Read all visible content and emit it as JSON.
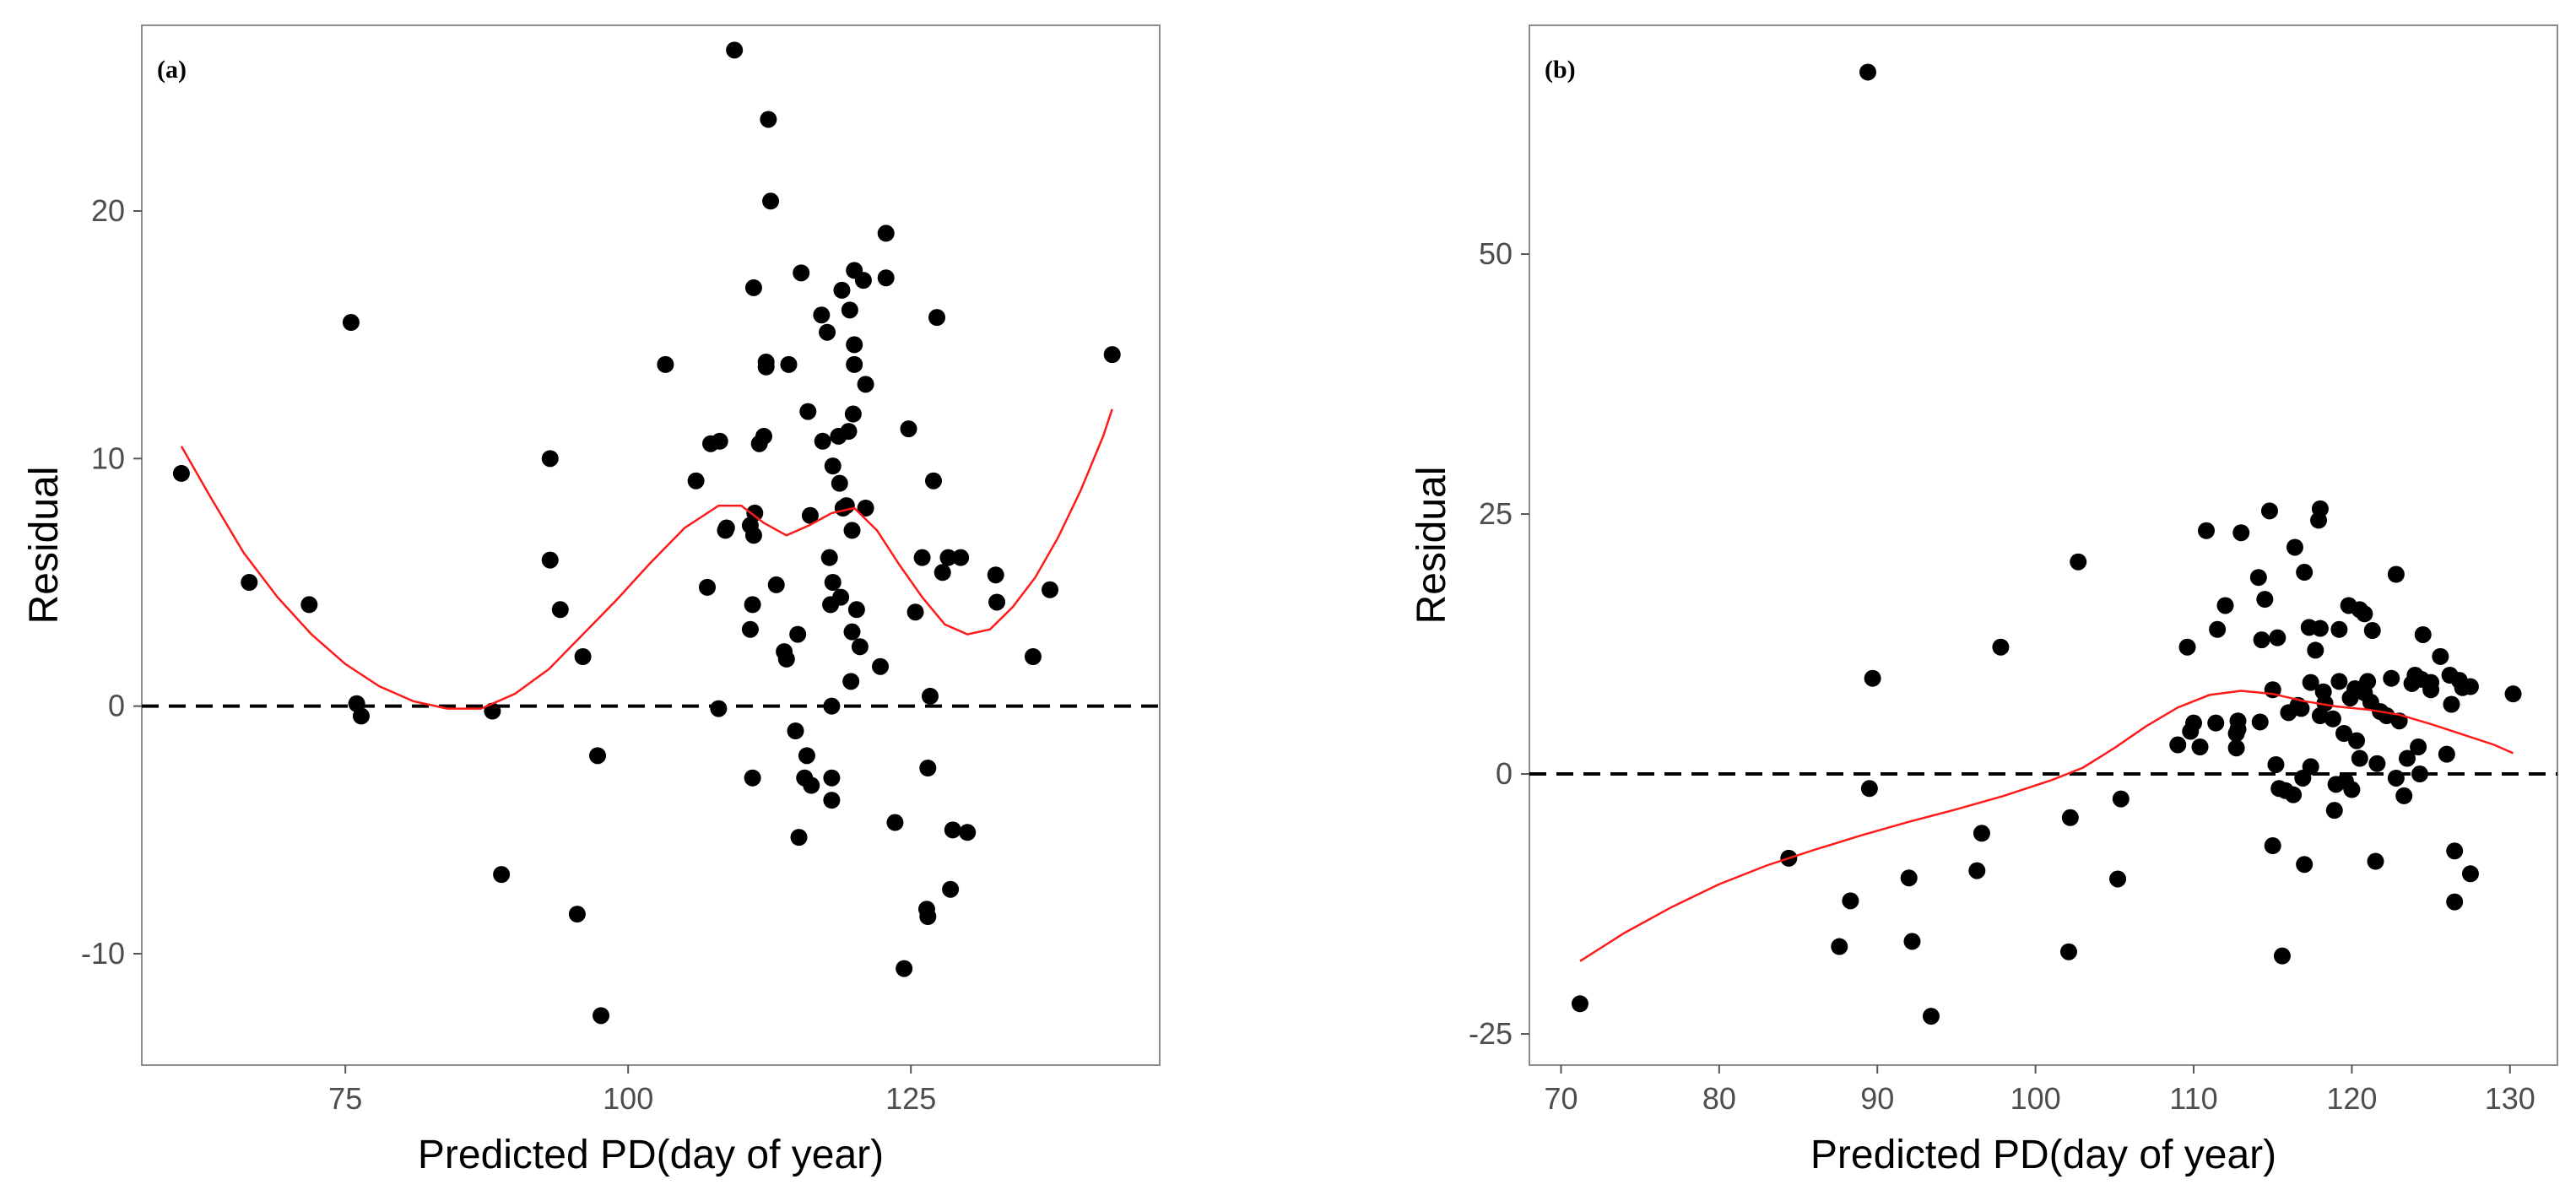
{
  "chart_data": [
    {
      "type": "scatter",
      "panel_label": "(a)",
      "title": "",
      "xlabel": "Predicted PD(day of year)",
      "ylabel": "Residual",
      "xlim": [
        57,
        147
      ],
      "ylim": [
        -14.5,
        27.5
      ],
      "xticks": [
        75,
        100,
        125
      ],
      "yticks": [
        -10,
        0,
        10,
        20
      ],
      "grid": false,
      "legend": "none",
      "reference_line": 0,
      "points": [
        [
          60.5,
          9.4
        ],
        [
          66.5,
          5.0
        ],
        [
          71.8,
          4.1
        ],
        [
          75.5,
          15.5
        ],
        [
          76.0,
          0.1
        ],
        [
          76.4,
          -0.4
        ],
        [
          88.0,
          -0.2
        ],
        [
          88.8,
          -6.8
        ],
        [
          93.1,
          10.0
        ],
        [
          93.1,
          5.9
        ],
        [
          94.0,
          3.9
        ],
        [
          95.5,
          -8.4
        ],
        [
          96.0,
          2.0
        ],
        [
          97.3,
          -2.0
        ],
        [
          97.6,
          -12.5
        ],
        [
          103.3,
          13.8
        ],
        [
          106.0,
          9.1
        ],
        [
          107.0,
          4.8
        ],
        [
          107.3,
          10.6
        ],
        [
          108.0,
          -0.1
        ],
        [
          108.1,
          10.7
        ],
        [
          108.6,
          7.1
        ],
        [
          108.7,
          7.2
        ],
        [
          109.4,
          26.5
        ],
        [
          110.8,
          7.3
        ],
        [
          110.8,
          3.1
        ],
        [
          111.0,
          4.1
        ],
        [
          111.1,
          16.9
        ],
        [
          111.1,
          6.9
        ],
        [
          111.2,
          7.8
        ],
        [
          111.0,
          -2.9
        ],
        [
          111.6,
          10.6
        ],
        [
          112.0,
          10.9
        ],
        [
          112.2,
          13.9
        ],
        [
          112.2,
          13.7
        ],
        [
          112.4,
          23.7
        ],
        [
          112.6,
          20.4
        ],
        [
          113.1,
          4.9
        ],
        [
          113.8,
          2.2
        ],
        [
          114.0,
          1.9
        ],
        [
          114.2,
          13.8
        ],
        [
          114.8,
          -1.0
        ],
        [
          115.0,
          2.9
        ],
        [
          115.1,
          -5.3
        ],
        [
          115.3,
          17.5
        ],
        [
          115.6,
          -2.9
        ],
        [
          115.8,
          -2.0
        ],
        [
          115.9,
          11.9
        ],
        [
          116.1,
          7.7
        ],
        [
          116.2,
          -3.2
        ],
        [
          117.1,
          15.8
        ],
        [
          117.2,
          10.7
        ],
        [
          117.6,
          15.1
        ],
        [
          117.8,
          6.0
        ],
        [
          117.9,
          4.1
        ],
        [
          118.0,
          0.0
        ],
        [
          118.0,
          -2.9
        ],
        [
          118.0,
          -3.8
        ],
        [
          118.1,
          9.7
        ],
        [
          118.1,
          5.0
        ],
        [
          118.6,
          10.9
        ],
        [
          118.7,
          9.0
        ],
        [
          118.8,
          4.4
        ],
        [
          118.9,
          16.8
        ],
        [
          119.0,
          8.0
        ],
        [
          119.3,
          8.1
        ],
        [
          119.5,
          11.1
        ],
        [
          119.6,
          16.0
        ],
        [
          119.7,
          1.0
        ],
        [
          119.8,
          3.0
        ],
        [
          119.8,
          7.1
        ],
        [
          119.9,
          11.8
        ],
        [
          120.0,
          13.8
        ],
        [
          120.0,
          14.6
        ],
        [
          120.0,
          17.6
        ],
        [
          120.2,
          3.9
        ],
        [
          120.5,
          2.4
        ],
        [
          120.8,
          17.2
        ],
        [
          121.0,
          13.0
        ],
        [
          121.0,
          8.0
        ],
        [
          122.3,
          1.6
        ],
        [
          122.8,
          19.1
        ],
        [
          122.8,
          17.3
        ],
        [
          123.6,
          -4.7
        ],
        [
          124.4,
          -10.6
        ],
        [
          124.8,
          11.2
        ],
        [
          125.4,
          3.8
        ],
        [
          126.0,
          6.0
        ],
        [
          126.4,
          -8.2
        ],
        [
          126.5,
          -2.5
        ],
        [
          126.5,
          -8.5
        ],
        [
          126.7,
          0.4
        ],
        [
          127.0,
          9.1
        ],
        [
          127.3,
          15.7
        ],
        [
          127.8,
          5.4
        ],
        [
          128.3,
          6.0
        ],
        [
          128.5,
          -7.4
        ],
        [
          128.7,
          -5.0
        ],
        [
          129.4,
          6.0
        ],
        [
          130.0,
          -5.1
        ],
        [
          132.5,
          5.3
        ],
        [
          132.6,
          4.2
        ],
        [
          135.8,
          2.0
        ],
        [
          137.3,
          4.7
        ],
        [
          142.8,
          14.2
        ]
      ],
      "smooth_line": [
        [
          60.5,
          10.5
        ],
        [
          63,
          8.5
        ],
        [
          66,
          6.2
        ],
        [
          69,
          4.4
        ],
        [
          72,
          2.9
        ],
        [
          75,
          1.7
        ],
        [
          78,
          0.8
        ],
        [
          81,
          0.2
        ],
        [
          84,
          -0.1
        ],
        [
          87,
          -0.1
        ],
        [
          90,
          0.5
        ],
        [
          93,
          1.5
        ],
        [
          96,
          2.9
        ],
        [
          99,
          4.3
        ],
        [
          102,
          5.8
        ],
        [
          105,
          7.2
        ],
        [
          108,
          8.1
        ],
        [
          110,
          8.1
        ],
        [
          112,
          7.4
        ],
        [
          114,
          6.9
        ],
        [
          116,
          7.3
        ],
        [
          118,
          7.8
        ],
        [
          120,
          8.0
        ],
        [
          122,
          7.1
        ],
        [
          124,
          5.7
        ],
        [
          126,
          4.4
        ],
        [
          128,
          3.3
        ],
        [
          130,
          2.9
        ],
        [
          132,
          3.1
        ],
        [
          134,
          4.0
        ],
        [
          136,
          5.2
        ],
        [
          138,
          6.8
        ],
        [
          140,
          8.7
        ],
        [
          142,
          10.9
        ],
        [
          142.8,
          12.0
        ]
      ]
    },
    {
      "type": "scatter",
      "panel_label": "(b)",
      "title": "",
      "xlabel": "Predicted PD(day of year)",
      "ylabel": "Residual",
      "xlim": [
        68,
        133
      ],
      "ylim": [
        -28,
        72
      ],
      "xticks": [
        70,
        80,
        90,
        100,
        110,
        120,
        130
      ],
      "yticks": [
        -25,
        0,
        25,
        50
      ],
      "grid": false,
      "legend": "none",
      "reference_line": 0,
      "points": [
        [
          71.2,
          -22.1
        ],
        [
          84.4,
          -8.1
        ],
        [
          87.6,
          -16.6
        ],
        [
          88.3,
          -12.2
        ],
        [
          89.4,
          67.5
        ],
        [
          89.5,
          -1.4
        ],
        [
          89.7,
          9.2
        ],
        [
          92.0,
          -10.0
        ],
        [
          92.2,
          -16.1
        ],
        [
          93.4,
          -23.3
        ],
        [
          96.3,
          -9.3
        ],
        [
          96.6,
          -5.7
        ],
        [
          97.8,
          12.2
        ],
        [
          102.1,
          -17.1
        ],
        [
          102.2,
          -4.2
        ],
        [
          102.7,
          20.4
        ],
        [
          105.2,
          -10.1
        ],
        [
          105.4,
          -2.4
        ],
        [
          109.0,
          2.8
        ],
        [
          109.6,
          12.2
        ],
        [
          109.8,
          4.1
        ],
        [
          110.0,
          4.9
        ],
        [
          110.4,
          2.6
        ],
        [
          110.8,
          23.4
        ],
        [
          111.4,
          4.9
        ],
        [
          111.5,
          13.9
        ],
        [
          112.0,
          16.2
        ],
        [
          112.7,
          2.5
        ],
        [
          112.7,
          3.9
        ],
        [
          112.8,
          4.3
        ],
        [
          112.8,
          5.1
        ],
        [
          113.0,
          23.2
        ],
        [
          114.1,
          18.9
        ],
        [
          114.2,
          5.0
        ],
        [
          114.3,
          12.9
        ],
        [
          114.5,
          16.8
        ],
        [
          114.8,
          25.3
        ],
        [
          115.0,
          8.1
        ],
        [
          115.0,
          -6.9
        ],
        [
          115.2,
          0.9
        ],
        [
          115.3,
          13.1
        ],
        [
          115.4,
          -1.4
        ],
        [
          115.6,
          -17.5
        ],
        [
          115.8,
          -1.6
        ],
        [
          116.0,
          5.9
        ],
        [
          116.3,
          -2.0
        ],
        [
          116.4,
          21.8
        ],
        [
          116.6,
          6.6
        ],
        [
          116.8,
          6.3
        ],
        [
          116.9,
          -0.4
        ],
        [
          117.0,
          19.4
        ],
        [
          117.0,
          -8.7
        ],
        [
          117.3,
          14.1
        ],
        [
          117.4,
          8.8
        ],
        [
          117.4,
          0.7
        ],
        [
          117.7,
          11.9
        ],
        [
          117.9,
          24.4
        ],
        [
          118.0,
          25.5
        ],
        [
          118.0,
          14.0
        ],
        [
          118.0,
          5.6
        ],
        [
          118.2,
          7.9
        ],
        [
          118.3,
          6.8
        ],
        [
          118.8,
          5.3
        ],
        [
          118.9,
          -3.5
        ],
        [
          119.0,
          -1.0
        ],
        [
          119.2,
          13.9
        ],
        [
          119.2,
          8.9
        ],
        [
          119.5,
          3.9
        ],
        [
          119.6,
          -0.7
        ],
        [
          119.8,
          16.2
        ],
        [
          119.9,
          7.3
        ],
        [
          120.0,
          -1.5
        ],
        [
          120.2,
          8.2
        ],
        [
          120.3,
          3.2
        ],
        [
          120.5,
          15.8
        ],
        [
          120.5,
          1.5
        ],
        [
          120.8,
          15.4
        ],
        [
          120.8,
          7.8
        ],
        [
          121.0,
          8.9
        ],
        [
          121.2,
          6.9
        ],
        [
          121.3,
          13.8
        ],
        [
          121.5,
          -8.4
        ],
        [
          121.6,
          1.0
        ],
        [
          121.8,
          6.0
        ],
        [
          122.2,
          5.6
        ],
        [
          122.5,
          9.2
        ],
        [
          122.8,
          19.2
        ],
        [
          122.8,
          -0.4
        ],
        [
          123.0,
          5.1
        ],
        [
          123.3,
          -2.1
        ],
        [
          123.5,
          1.5
        ],
        [
          123.8,
          8.7
        ],
        [
          124.0,
          9.5
        ],
        [
          124.2,
          2.6
        ],
        [
          124.3,
          0.0
        ],
        [
          124.4,
          9.1
        ],
        [
          124.5,
          13.4
        ],
        [
          125.0,
          8.8
        ],
        [
          125.0,
          8.1
        ],
        [
          125.6,
          11.3
        ],
        [
          126.0,
          1.9
        ],
        [
          126.2,
          9.5
        ],
        [
          126.3,
          6.7
        ],
        [
          126.5,
          -7.4
        ],
        [
          126.5,
          -12.3
        ],
        [
          126.8,
          9.0
        ],
        [
          127.0,
          8.3
        ],
        [
          127.5,
          -9.6
        ],
        [
          127.5,
          8.4
        ],
        [
          130.2,
          7.7
        ]
      ],
      "smooth_line": [
        [
          71.2,
          -18.0
        ],
        [
          74,
          -15.3
        ],
        [
          77,
          -12.8
        ],
        [
          80,
          -10.6
        ],
        [
          83,
          -8.8
        ],
        [
          86,
          -7.3
        ],
        [
          89,
          -5.9
        ],
        [
          92,
          -4.6
        ],
        [
          95,
          -3.4
        ],
        [
          98,
          -2.1
        ],
        [
          101,
          -0.6
        ],
        [
          103,
          0.6
        ],
        [
          105,
          2.5
        ],
        [
          107,
          4.6
        ],
        [
          109,
          6.4
        ],
        [
          111,
          7.6
        ],
        [
          113,
          8.0
        ],
        [
          115,
          7.7
        ],
        [
          117,
          7.0
        ],
        [
          119,
          6.5
        ],
        [
          121,
          6.2
        ],
        [
          123,
          5.7
        ],
        [
          125,
          4.8
        ],
        [
          127,
          3.8
        ],
        [
          129,
          2.8
        ],
        [
          130.2,
          2.0
        ]
      ]
    }
  ]
}
